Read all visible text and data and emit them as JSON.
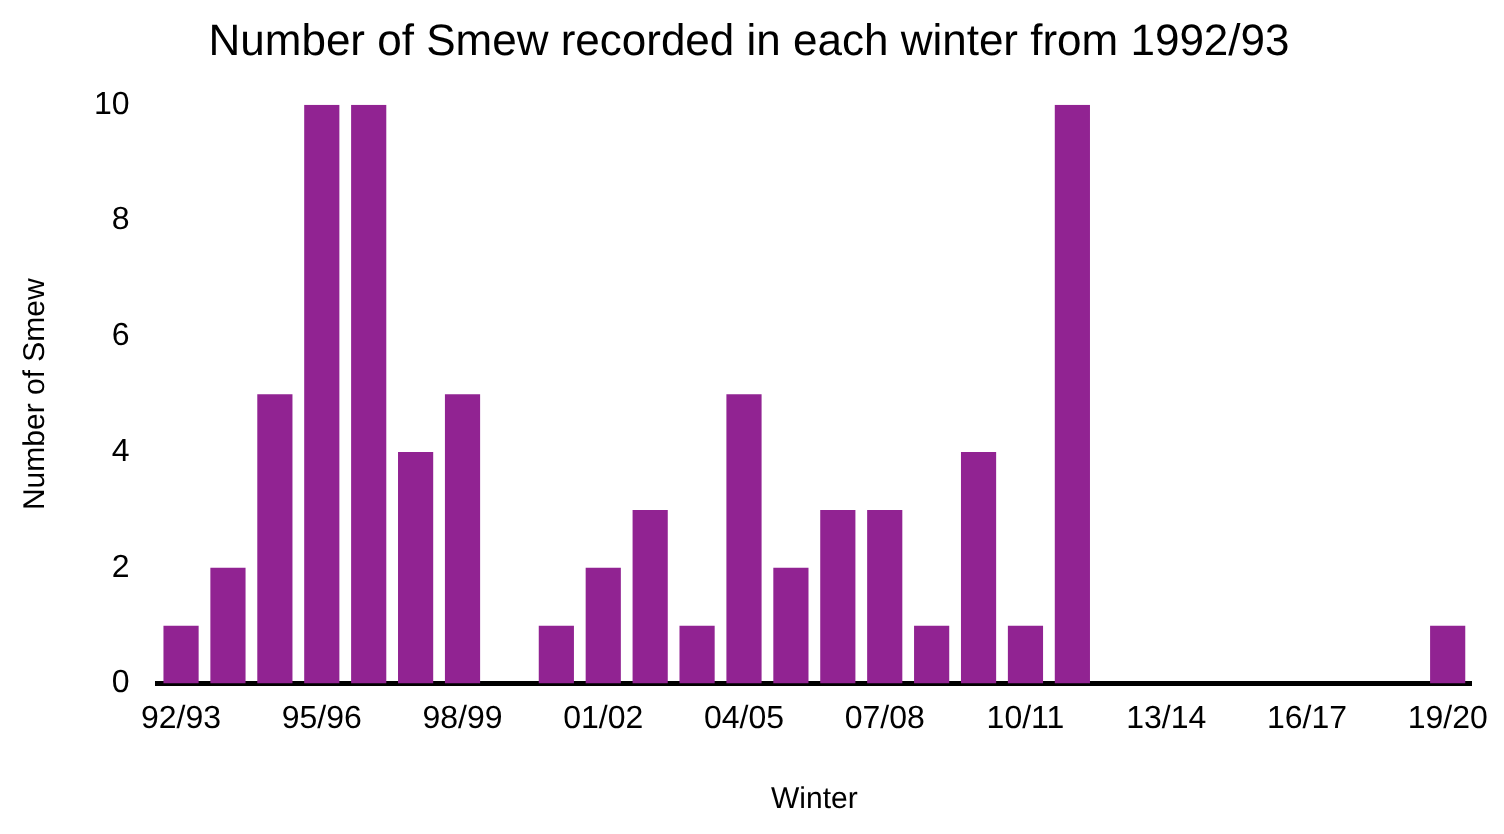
{
  "chart_data": {
    "type": "bar",
    "title": "Number of Smew recorded in each winter from 1992/93",
    "xlabel": "Winter",
    "ylabel": "Number of Smew",
    "categories": [
      "92/93",
      null,
      null,
      "95/96",
      null,
      null,
      "98/99",
      null,
      null,
      "01/02",
      null,
      null,
      "04/05",
      null,
      null,
      "07/08",
      null,
      null,
      "10/11",
      null,
      null,
      "13/14",
      null,
      null,
      "16/17",
      null,
      null,
      "19/20"
    ],
    "values": [
      1,
      2,
      5,
      10,
      10,
      4,
      5,
      0,
      1,
      2,
      3,
      1,
      5,
      2,
      3,
      3,
      1,
      4,
      1,
      10,
      0,
      0,
      0,
      0,
      0,
      0,
      0,
      1
    ],
    "color": "#912392",
    "ylim": [
      0,
      10
    ],
    "yticks": [
      0,
      2,
      4,
      6,
      8,
      10
    ],
    "grid": false,
    "legend": false
  }
}
